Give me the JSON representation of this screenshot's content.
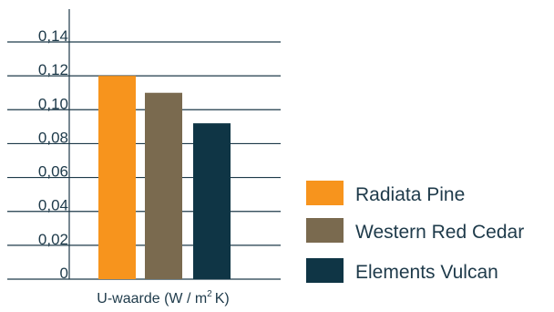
{
  "chart_data": {
    "type": "bar",
    "categories": [
      "Radiata Pine",
      "Western Red Cedar",
      "Elements Vulcan"
    ],
    "values": [
      0.12,
      0.11,
      0.092
    ],
    "colors": [
      "#f7941d",
      "#7a6a4f",
      "#0f3545"
    ],
    "yticks": [
      "0",
      "0,02",
      "0,04",
      "0,06",
      "0,08",
      "0,10",
      "0,12",
      "0,14"
    ],
    "ylim": [
      0,
      0.14
    ],
    "xlabel_prefix": "U-waarde (W / m",
    "xlabel_sup": "2",
    "xlabel_suffix": "K)",
    "legend": [
      "Radiata Pine",
      "Western Red Cedar",
      "Elements Vulcan"
    ],
    "grid": true,
    "legend_position": "right"
  }
}
